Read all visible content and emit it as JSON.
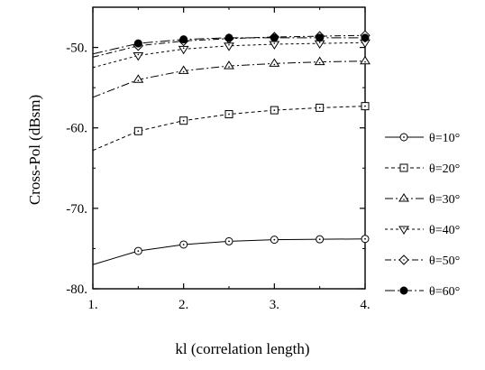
{
  "chart_data": {
    "type": "line",
    "xlabel": "kl (correlation length)",
    "ylabel": "Cross-Pol (dBsm)",
    "xlim": [
      1,
      4
    ],
    "ylim": [
      -80,
      -45
    ],
    "x_ticks": [
      {
        "value": 1,
        "label": "1."
      },
      {
        "value": 2,
        "label": "2."
      },
      {
        "value": 3,
        "label": "3."
      },
      {
        "value": 4,
        "label": "4."
      }
    ],
    "y_ticks": [
      {
        "value": -50,
        "label": "-50."
      },
      {
        "value": -60,
        "label": "-60."
      },
      {
        "value": -70,
        "label": "-70."
      },
      {
        "value": -80,
        "label": "-80."
      }
    ],
    "grid": false,
    "legend_position": "right",
    "series": [
      {
        "name": "θ=10°",
        "marker": "circle-open",
        "dash": "",
        "x": [
          1.0,
          1.5,
          2.0,
          2.5,
          3.0,
          3.5,
          4.0
        ],
        "y": [
          -77.0,
          -75.3,
          -74.5,
          -74.1,
          -73.9,
          -73.85,
          -73.8
        ]
      },
      {
        "name": "θ=20°",
        "marker": "square-dot",
        "dash": "4 3",
        "x": [
          1.0,
          1.5,
          2.0,
          2.5,
          3.0,
          3.5,
          4.0
        ],
        "y": [
          -62.8,
          -60.4,
          -59.1,
          -58.3,
          -57.8,
          -57.5,
          -57.3
        ]
      },
      {
        "name": "θ=30°",
        "marker": "triangle-up",
        "dash": "9 3 2 3",
        "x": [
          1.0,
          1.5,
          2.0,
          2.5,
          3.0,
          3.5,
          4.0
        ],
        "y": [
          -56.2,
          -54.0,
          -52.9,
          -52.3,
          -52.0,
          -51.8,
          -51.7
        ]
      },
      {
        "name": "θ=40°",
        "marker": "triangle-down",
        "dash": "3 3",
        "x": [
          1.0,
          1.5,
          2.0,
          2.5,
          3.0,
          3.5,
          4.0
        ],
        "y": [
          -52.5,
          -51.0,
          -50.2,
          -49.8,
          -49.6,
          -49.5,
          -49.4
        ]
      },
      {
        "name": "θ=50°",
        "marker": "diamond",
        "dash": "7 3 2 3",
        "x": [
          1.0,
          1.5,
          2.0,
          2.5,
          3.0,
          3.5,
          4.0
        ],
        "y": [
          -51.2,
          -49.8,
          -49.2,
          -48.9,
          -48.7,
          -48.6,
          -48.5
        ]
      },
      {
        "name": "θ=60°",
        "marker": "circle-filled",
        "dash": "11 3 2 3",
        "x": [
          1.0,
          1.5,
          2.0,
          2.5,
          3.0,
          3.5,
          4.0
        ],
        "y": [
          -50.8,
          -49.5,
          -49.0,
          -48.8,
          -48.8,
          -48.8,
          -48.8
        ]
      }
    ]
  }
}
